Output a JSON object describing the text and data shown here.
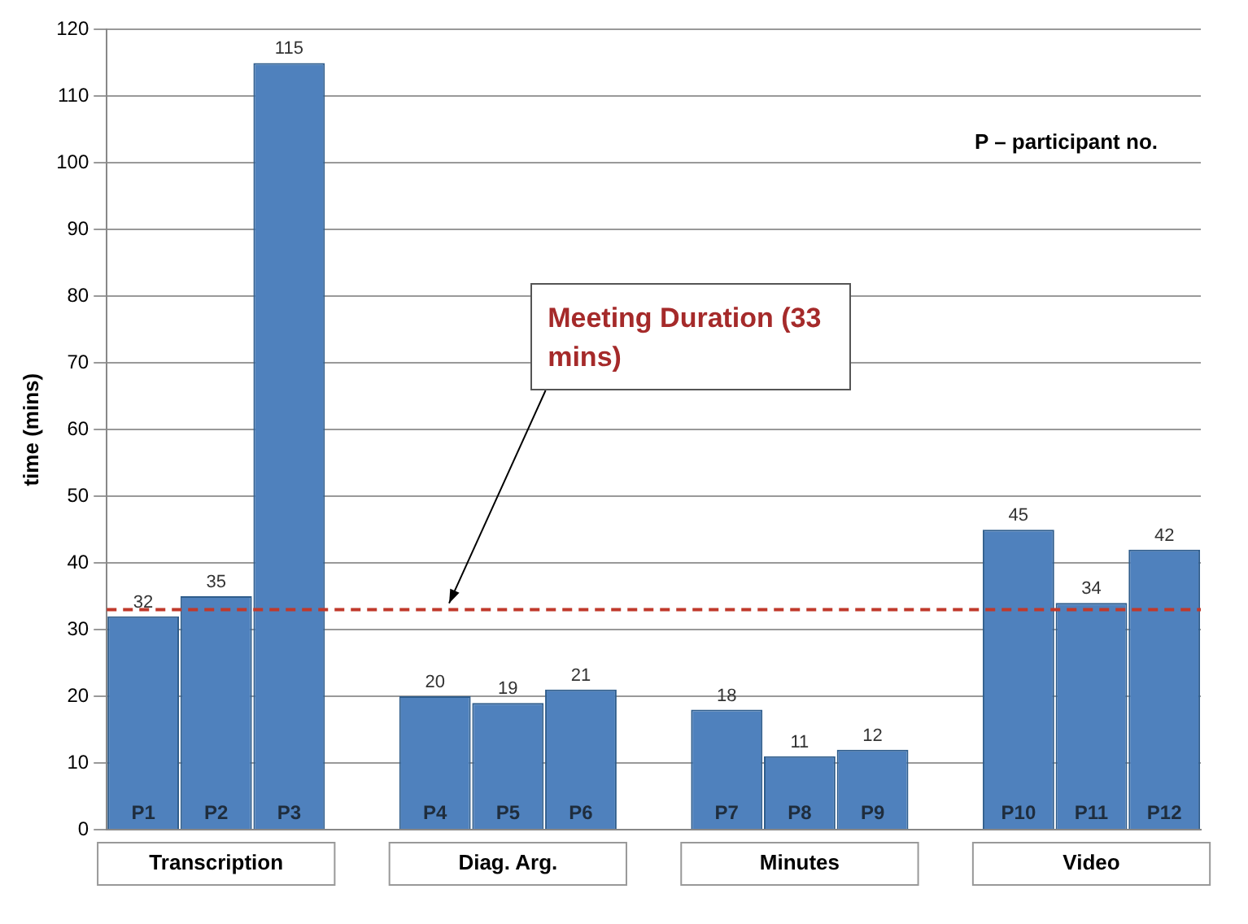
{
  "chart_data": {
    "type": "bar",
    "ylabel": "time (mins)",
    "categories": [
      "P1",
      "P2",
      "P3",
      null,
      "P4",
      "P5",
      "P6",
      null,
      "P7",
      "P8",
      "P9",
      null,
      "P10",
      "P11",
      "P12"
    ],
    "values": [
      32,
      35,
      115,
      null,
      20,
      19,
      21,
      null,
      18,
      11,
      12,
      null,
      45,
      34,
      42
    ],
    "color": "#4f81bd",
    "data_labels": true,
    "ylim": [
      0,
      120
    ],
    "yticks": [
      0,
      10,
      20,
      30,
      40,
      50,
      60,
      70,
      80,
      90,
      100,
      110,
      120
    ],
    "grid": "y",
    "legend": false,
    "ref_lines": [
      {
        "axis": "y",
        "value": 33,
        "label": "Meeting Duration (33 mins)",
        "color": "#c0392b",
        "line_style": "dashed"
      }
    ],
    "annotations": [
      "P – participant no.",
      "Transcription",
      "Diag. Arg.",
      "Minutes",
      "Video"
    ]
  }
}
